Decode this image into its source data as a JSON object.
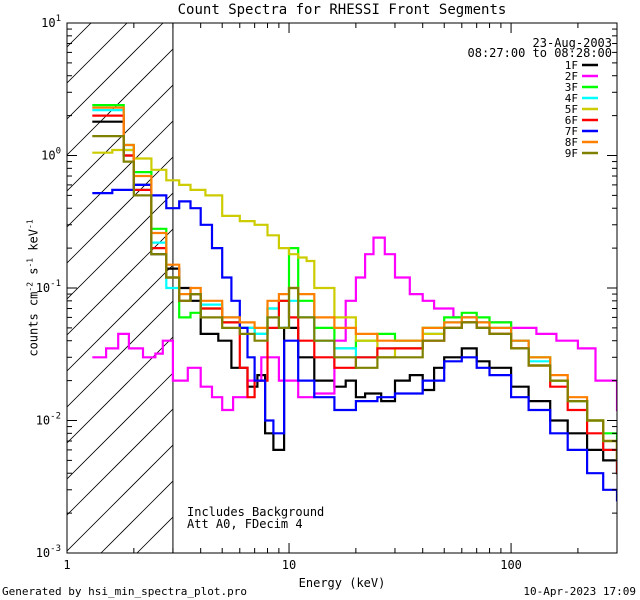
{
  "chart_data": {
    "type": "line",
    "title": "Count Spectra for RHESSI Front Segments",
    "xlabel": "Energy (keV)",
    "ylabel": "counts cm^-2 s^-1 keV^-1",
    "xscale": "log",
    "yscale": "log",
    "xlim": [
      1,
      300
    ],
    "ylim": [
      0.001,
      10
    ],
    "x_ticks": [
      {
        "value": 1,
        "label": "1"
      },
      {
        "value": 10,
        "label": "10"
      },
      {
        "value": 100,
        "label": "100"
      }
    ],
    "y_ticks": [
      {
        "value": 0.001,
        "base": "10",
        "exp": "-3"
      },
      {
        "value": 0.01,
        "base": "10",
        "exp": "-2"
      },
      {
        "value": 0.1,
        "base": "10",
        "exp": "-1"
      },
      {
        "value": 1,
        "base": "10",
        "exp": "0"
      },
      {
        "value": 10,
        "base": "10",
        "exp": "1"
      }
    ],
    "hatched_region": {
      "x_from": 1,
      "x_to": 3
    },
    "date": "23-Aug-2003",
    "time_range": "08:27:00 to 08:28:00",
    "notes": [
      "Includes Background",
      "Att A0, FDecim 4"
    ],
    "series": [
      {
        "name": "1F",
        "color": "#000000",
        "points": [
          [
            1.3,
            1.8
          ],
          [
            1.8,
            1.0
          ],
          [
            2.0,
            0.6
          ],
          [
            2.4,
            0.18
          ],
          [
            2.8,
            0.14
          ],
          [
            3.2,
            0.1
          ],
          [
            3.6,
            0.08
          ],
          [
            4,
            0.045
          ],
          [
            4.8,
            0.04
          ],
          [
            5.5,
            0.025
          ],
          [
            6.5,
            0.018
          ],
          [
            7.2,
            0.022
          ],
          [
            7.8,
            0.008
          ],
          [
            8.5,
            0.006
          ],
          [
            9.5,
            0.05
          ],
          [
            11,
            0.03
          ],
          [
            13,
            0.02
          ],
          [
            16,
            0.018
          ],
          [
            18,
            0.02
          ],
          [
            20,
            0.015
          ],
          [
            22,
            0.016
          ],
          [
            26,
            0.014
          ],
          [
            30,
            0.02
          ],
          [
            35,
            0.022
          ],
          [
            40,
            0.017
          ],
          [
            45,
            0.025
          ],
          [
            50,
            0.03
          ],
          [
            60,
            0.035
          ],
          [
            70,
            0.028
          ],
          [
            80,
            0.025
          ],
          [
            100,
            0.018
          ],
          [
            120,
            0.014
          ],
          [
            150,
            0.01
          ],
          [
            180,
            0.008
          ],
          [
            220,
            0.006
          ],
          [
            260,
            0.005
          ],
          [
            300,
            0.004
          ]
        ]
      },
      {
        "name": "2F",
        "color": "#ff00ff",
        "points": [
          [
            1.3,
            0.03
          ],
          [
            1.5,
            0.035
          ],
          [
            1.7,
            0.045
          ],
          [
            1.9,
            0.035
          ],
          [
            2.2,
            0.03
          ],
          [
            2.5,
            0.032
          ],
          [
            2.7,
            0.04
          ],
          [
            3,
            0.02
          ],
          [
            3.5,
            0.025
          ],
          [
            4,
            0.018
          ],
          [
            4.5,
            0.015
          ],
          [
            5,
            0.012
          ],
          [
            5.6,
            0.015
          ],
          [
            6.5,
            0.02
          ],
          [
            7.5,
            0.03
          ],
          [
            9,
            0.02
          ],
          [
            11,
            0.015
          ],
          [
            13,
            0.016
          ],
          [
            16,
            0.04
          ],
          [
            18,
            0.08
          ],
          [
            20,
            0.12
          ],
          [
            22,
            0.18
          ],
          [
            24,
            0.24
          ],
          [
            27,
            0.18
          ],
          [
            30,
            0.12
          ],
          [
            35,
            0.09
          ],
          [
            40,
            0.08
          ],
          [
            45,
            0.07
          ],
          [
            55,
            0.06
          ],
          [
            70,
            0.055
          ],
          [
            100,
            0.05
          ],
          [
            130,
            0.045
          ],
          [
            160,
            0.04
          ],
          [
            200,
            0.035
          ],
          [
            240,
            0.02
          ],
          [
            300,
            0.012
          ]
        ]
      },
      {
        "name": "3F",
        "color": "#00ff00",
        "points": [
          [
            1.3,
            2.4
          ],
          [
            1.8,
            1.2
          ],
          [
            2.0,
            0.75
          ],
          [
            2.4,
            0.28
          ],
          [
            2.8,
            0.12
          ],
          [
            3.2,
            0.06
          ],
          [
            3.6,
            0.065
          ],
          [
            4,
            0.07
          ],
          [
            5,
            0.055
          ],
          [
            6,
            0.05
          ],
          [
            7,
            0.045
          ],
          [
            8,
            0.07
          ],
          [
            9,
            0.08
          ],
          [
            10,
            0.2
          ],
          [
            11,
            0.08
          ],
          [
            13,
            0.05
          ],
          [
            16,
            0.035
          ],
          [
            20,
            0.04
          ],
          [
            25,
            0.045
          ],
          [
            30,
            0.04
          ],
          [
            40,
            0.05
          ],
          [
            50,
            0.06
          ],
          [
            60,
            0.065
          ],
          [
            70,
            0.06
          ],
          [
            80,
            0.055
          ],
          [
            100,
            0.04
          ],
          [
            120,
            0.03
          ],
          [
            150,
            0.02
          ],
          [
            180,
            0.014
          ],
          [
            220,
            0.01
          ],
          [
            260,
            0.008
          ],
          [
            300,
            0.006
          ]
        ]
      },
      {
        "name": "4F",
        "color": "#00ffff",
        "points": [
          [
            1.3,
            2.2
          ],
          [
            1.8,
            1.1
          ],
          [
            2.0,
            0.55
          ],
          [
            2.4,
            0.22
          ],
          [
            2.8,
            0.1
          ],
          [
            3.2,
            0.08
          ],
          [
            3.6,
            0.09
          ],
          [
            4,
            0.075
          ],
          [
            5,
            0.06
          ],
          [
            6,
            0.05
          ],
          [
            7,
            0.045
          ],
          [
            8,
            0.07
          ],
          [
            9,
            0.05
          ],
          [
            10,
            0.08
          ],
          [
            11,
            0.06
          ],
          [
            13,
            0.04
          ],
          [
            16,
            0.035
          ],
          [
            20,
            0.03
          ],
          [
            25,
            0.035
          ],
          [
            30,
            0.035
          ],
          [
            40,
            0.045
          ],
          [
            50,
            0.055
          ],
          [
            60,
            0.06
          ],
          [
            70,
            0.055
          ],
          [
            80,
            0.05
          ],
          [
            100,
            0.04
          ],
          [
            120,
            0.028
          ],
          [
            150,
            0.02
          ],
          [
            180,
            0.014
          ],
          [
            220,
            0.01
          ],
          [
            260,
            0.006
          ],
          [
            300,
            0.004
          ]
        ]
      },
      {
        "name": "5F",
        "color": "#cccc00",
        "points": [
          [
            1.3,
            1.05
          ],
          [
            1.6,
            1.1
          ],
          [
            2.0,
            0.95
          ],
          [
            2.4,
            0.78
          ],
          [
            2.8,
            0.65
          ],
          [
            3.2,
            0.6
          ],
          [
            3.6,
            0.55
          ],
          [
            4.2,
            0.5
          ],
          [
            5,
            0.35
          ],
          [
            6,
            0.32
          ],
          [
            7,
            0.3
          ],
          [
            8,
            0.25
          ],
          [
            9,
            0.2
          ],
          [
            10,
            0.18
          ],
          [
            11,
            0.17
          ],
          [
            12,
            0.16
          ],
          [
            13,
            0.1
          ],
          [
            16,
            0.06
          ],
          [
            20,
            0.04
          ],
          [
            25,
            0.03
          ],
          [
            30,
            0.035
          ],
          [
            40,
            0.045
          ],
          [
            50,
            0.05
          ],
          [
            60,
            0.055
          ],
          [
            70,
            0.05
          ],
          [
            80,
            0.045
          ],
          [
            100,
            0.035
          ],
          [
            120,
            0.026
          ],
          [
            150,
            0.02
          ],
          [
            180,
            0.014
          ],
          [
            220,
            0.01
          ],
          [
            260,
            0.007
          ],
          [
            300,
            0.005
          ]
        ]
      },
      {
        "name": "6F",
        "color": "#ff0000",
        "points": [
          [
            1.3,
            2.0
          ],
          [
            1.8,
            1.0
          ],
          [
            2.0,
            0.55
          ],
          [
            2.4,
            0.2
          ],
          [
            2.8,
            0.12
          ],
          [
            3.2,
            0.08
          ],
          [
            3.6,
            0.09
          ],
          [
            4,
            0.07
          ],
          [
            5,
            0.055
          ],
          [
            6,
            0.025
          ],
          [
            6.5,
            0.015
          ],
          [
            7,
            0.02
          ],
          [
            8,
            0.05
          ],
          [
            9,
            0.08
          ],
          [
            10,
            0.06
          ],
          [
            11,
            0.04
          ],
          [
            13,
            0.03
          ],
          [
            16,
            0.025
          ],
          [
            20,
            0.03
          ],
          [
            25,
            0.035
          ],
          [
            30,
            0.035
          ],
          [
            40,
            0.04
          ],
          [
            50,
            0.05
          ],
          [
            60,
            0.055
          ],
          [
            70,
            0.05
          ],
          [
            80,
            0.045
          ],
          [
            100,
            0.035
          ],
          [
            120,
            0.026
          ],
          [
            150,
            0.018
          ],
          [
            180,
            0.012
          ],
          [
            220,
            0.008
          ],
          [
            260,
            0.006
          ],
          [
            300,
            0.004
          ]
        ]
      },
      {
        "name": "7F",
        "color": "#0000ff",
        "points": [
          [
            1.3,
            0.52
          ],
          [
            1.6,
            0.55
          ],
          [
            2.0,
            0.6
          ],
          [
            2.4,
            0.5
          ],
          [
            2.8,
            0.4
          ],
          [
            3.2,
            0.45
          ],
          [
            3.6,
            0.4
          ],
          [
            4,
            0.3
          ],
          [
            4.5,
            0.2
          ],
          [
            5,
            0.12
          ],
          [
            5.5,
            0.08
          ],
          [
            6,
            0.05
          ],
          [
            6.5,
            0.03
          ],
          [
            7,
            0.02
          ],
          [
            7.8,
            0.01
          ],
          [
            8.5,
            0.008
          ],
          [
            9.5,
            0.04
          ],
          [
            11,
            0.02
          ],
          [
            13,
            0.015
          ],
          [
            16,
            0.012
          ],
          [
            20,
            0.014
          ],
          [
            25,
            0.015
          ],
          [
            30,
            0.016
          ],
          [
            40,
            0.02
          ],
          [
            50,
            0.028
          ],
          [
            60,
            0.03
          ],
          [
            70,
            0.025
          ],
          [
            80,
            0.022
          ],
          [
            100,
            0.015
          ],
          [
            120,
            0.012
          ],
          [
            150,
            0.008
          ],
          [
            180,
            0.006
          ],
          [
            220,
            0.004
          ],
          [
            260,
            0.003
          ],
          [
            300,
            0.0025
          ]
        ]
      },
      {
        "name": "8F",
        "color": "#ff8000",
        "points": [
          [
            1.3,
            2.3
          ],
          [
            1.8,
            1.2
          ],
          [
            2.0,
            0.7
          ],
          [
            2.4,
            0.26
          ],
          [
            2.8,
            0.15
          ],
          [
            3.2,
            0.09
          ],
          [
            3.6,
            0.1
          ],
          [
            4,
            0.08
          ],
          [
            5,
            0.06
          ],
          [
            6,
            0.055
          ],
          [
            7,
            0.05
          ],
          [
            8,
            0.08
          ],
          [
            9,
            0.09
          ],
          [
            10,
            0.1
          ],
          [
            11,
            0.09
          ],
          [
            13,
            0.06
          ],
          [
            16,
            0.05
          ],
          [
            20,
            0.045
          ],
          [
            25,
            0.04
          ],
          [
            30,
            0.04
          ],
          [
            40,
            0.05
          ],
          [
            50,
            0.055
          ],
          [
            60,
            0.06
          ],
          [
            70,
            0.055
          ],
          [
            80,
            0.05
          ],
          [
            100,
            0.04
          ],
          [
            120,
            0.03
          ],
          [
            150,
            0.022
          ],
          [
            180,
            0.015
          ],
          [
            220,
            0.01
          ],
          [
            260,
            0.007
          ],
          [
            300,
            0.005
          ]
        ]
      },
      {
        "name": "9F",
        "color": "#808000",
        "points": [
          [
            1.3,
            1.4
          ],
          [
            1.8,
            0.9
          ],
          [
            2.0,
            0.5
          ],
          [
            2.4,
            0.18
          ],
          [
            2.8,
            0.12
          ],
          [
            3.2,
            0.08
          ],
          [
            3.6,
            0.09
          ],
          [
            4,
            0.06
          ],
          [
            5,
            0.05
          ],
          [
            6,
            0.045
          ],
          [
            7,
            0.04
          ],
          [
            8,
            0.06
          ],
          [
            9,
            0.05
          ],
          [
            10,
            0.1
          ],
          [
            11,
            0.06
          ],
          [
            13,
            0.04
          ],
          [
            16,
            0.03
          ],
          [
            20,
            0.025
          ],
          [
            25,
            0.03
          ],
          [
            30,
            0.03
          ],
          [
            40,
            0.04
          ],
          [
            50,
            0.05
          ],
          [
            60,
            0.055
          ],
          [
            70,
            0.05
          ],
          [
            80,
            0.045
          ],
          [
            100,
            0.035
          ],
          [
            120,
            0.026
          ],
          [
            150,
            0.02
          ],
          [
            180,
            0.014
          ],
          [
            220,
            0.01
          ],
          [
            260,
            0.007
          ],
          [
            300,
            0.005
          ]
        ]
      }
    ]
  },
  "footer": {
    "generated_by": "Generated by hsi_min_spectra_plot.pro",
    "timestamp": "10-Apr-2023 17:09"
  }
}
